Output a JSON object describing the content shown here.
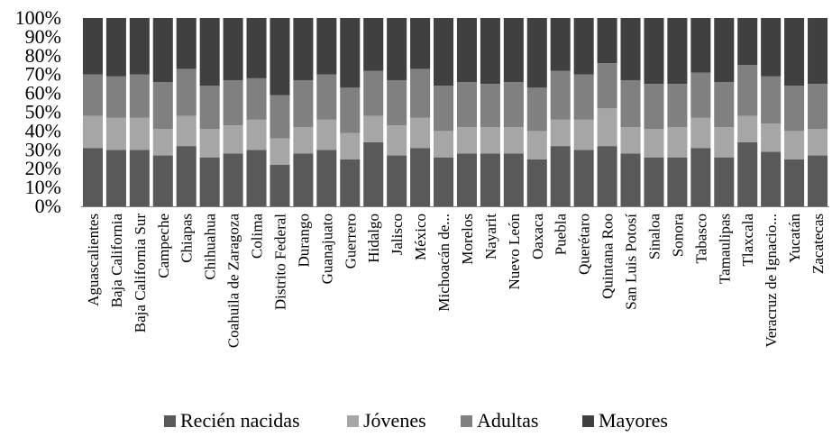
{
  "chart_data": {
    "type": "bar",
    "stacked": true,
    "percent": true,
    "title": "",
    "xlabel": "",
    "ylabel": "",
    "ylim": [
      0,
      100
    ],
    "y_ticks": [
      "0%",
      "10%",
      "20%",
      "30%",
      "40%",
      "50%",
      "60%",
      "70%",
      "80%",
      "90%",
      "100%"
    ],
    "legend_position": "bottom",
    "categories": [
      "Aguascalientes",
      "Baja California",
      "Baja California Sur",
      "Campeche",
      "Chiapas",
      "Chihuahua",
      "Coahuila de Zaragoza",
      "Colima",
      "Distrito Federal",
      "Durango",
      "Guanajuato",
      "Guerrero",
      "Hidalgo",
      "Jalisco",
      "México",
      "Michoacán de...",
      "Morelos",
      "Nayarit",
      "Nuevo León",
      "Oaxaca",
      "Puebla",
      "Querétaro",
      "Quintana Roo",
      "San Luis Potosí",
      "Sinaloa",
      "Sonora",
      "Tabasco",
      "Tamaulipas",
      "Tlaxcala",
      "Veracruz de Ignacio...",
      "Yucatán",
      "Zacatecas"
    ],
    "series": [
      {
        "name": "Recién nacidas",
        "color": "#595959",
        "values": [
          31,
          30,
          30,
          27,
          32,
          26,
          28,
          30,
          22,
          28,
          30,
          25,
          34,
          27,
          31,
          26,
          28,
          28,
          28,
          25,
          32,
          30,
          32,
          28,
          26,
          26,
          31,
          26,
          34,
          29,
          25,
          27
        ]
      },
      {
        "name": "Jóvenes",
        "color": "#a6a6a6",
        "values": [
          17,
          17,
          17,
          14,
          16,
          15,
          15,
          16,
          14,
          14,
          16,
          14,
          14,
          16,
          16,
          14,
          14,
          14,
          14,
          15,
          14,
          16,
          20,
          14,
          15,
          16,
          16,
          16,
          14,
          15,
          15,
          14
        ]
      },
      {
        "name": "Adultas",
        "color": "#808080",
        "values": [
          22,
          22,
          23,
          25,
          25,
          23,
          24,
          22,
          23,
          25,
          24,
          24,
          24,
          24,
          26,
          24,
          24,
          23,
          24,
          23,
          26,
          24,
          24,
          25,
          24,
          23,
          24,
          24,
          27,
          25,
          24,
          24
        ]
      },
      {
        "name": "Mayores",
        "color": "#404040",
        "values": [
          30,
          31,
          30,
          34,
          27,
          36,
          33,
          32,
          41,
          33,
          30,
          37,
          28,
          33,
          27,
          36,
          34,
          35,
          34,
          37,
          28,
          30,
          24,
          33,
          35,
          35,
          29,
          34,
          25,
          31,
          36,
          35
        ]
      }
    ]
  }
}
